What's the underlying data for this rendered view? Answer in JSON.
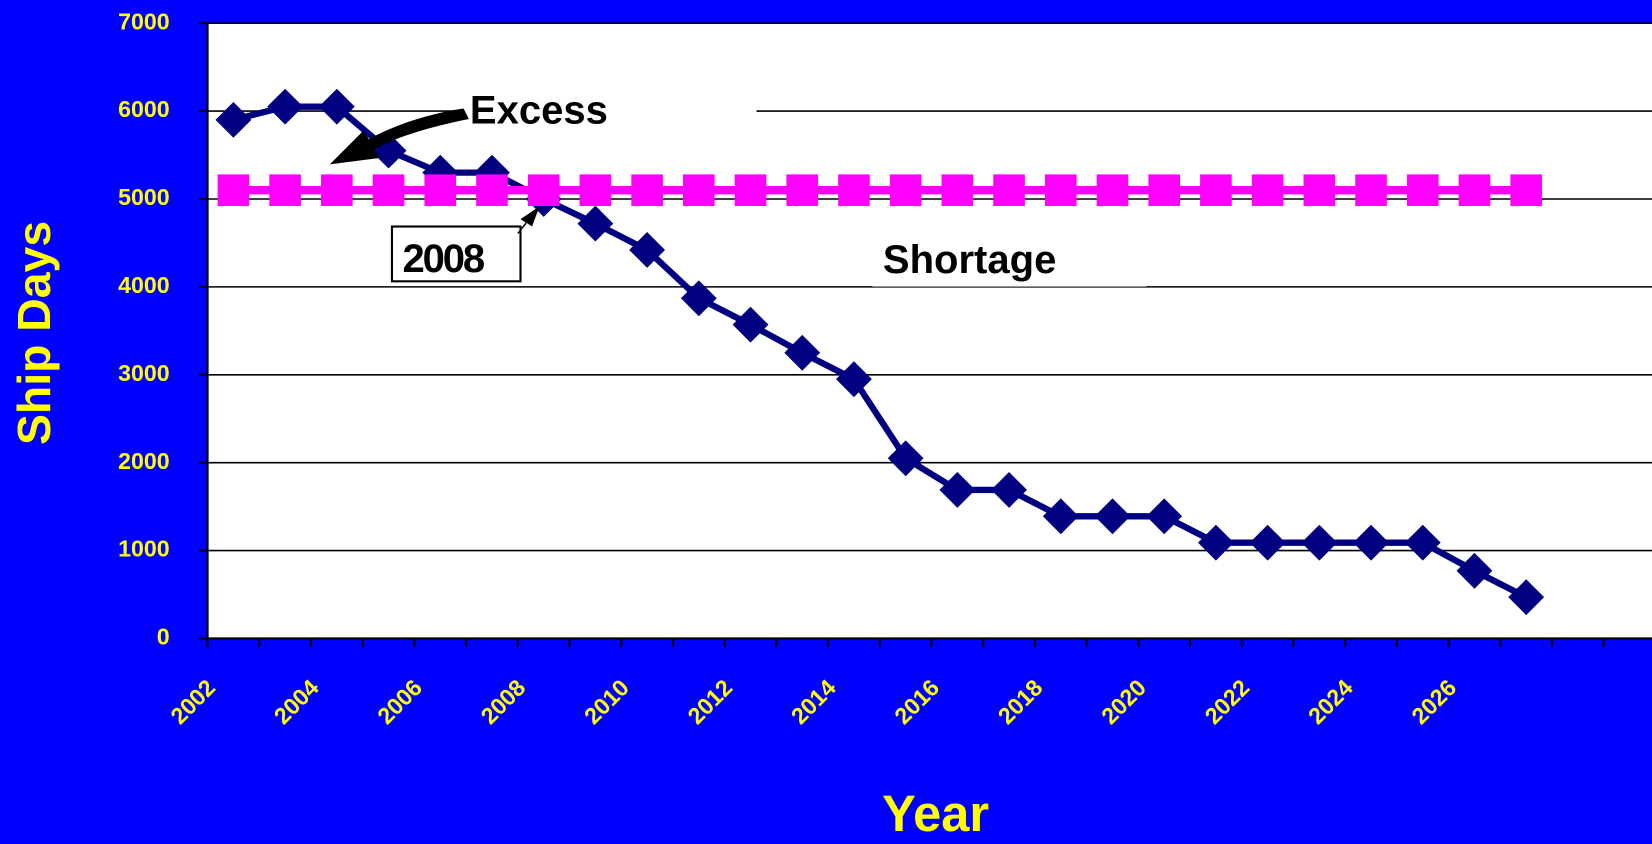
{
  "chart_data": {
    "type": "line",
    "y_label": "Ship Days",
    "x_label": "Year",
    "annotations": [
      "Excess",
      "2008",
      "Shortage"
    ],
    "categories": [
      "2002",
      null,
      "2004",
      null,
      "2006",
      null,
      "2008",
      null,
      "2010",
      null,
      "2012",
      null,
      "2014",
      null,
      "2016",
      null,
      "2018",
      null,
      "2020",
      null,
      "2022",
      null,
      "2024",
      null,
      "2026",
      null,
      null,
      null
    ],
    "series": [
      {
        "color": "#000080",
        "values": [
          5900,
          6050,
          6050,
          5550,
          5300,
          5300,
          5000,
          4720,
          4420,
          3870,
          3570,
          3250,
          2950,
          2050,
          1690,
          1690,
          1390,
          1390,
          1390,
          1090,
          1090,
          1090,
          1090,
          1090,
          770,
          470,
          null,
          null
        ]
      },
      {
        "color": "#ff00ff",
        "values": [
          5100,
          5100,
          5100,
          5100,
          5100,
          5100,
          5100,
          5100,
          5100,
          5100,
          5100,
          5100,
          5100,
          5100,
          5100,
          5100,
          5100,
          5100,
          5100,
          5100,
          5100,
          5100,
          5100,
          5100,
          5100,
          5100,
          null,
          null
        ]
      }
    ],
    "ylim": [
      0,
      7000
    ],
    "yticks": [
      0,
      1000,
      2000,
      3000,
      4000,
      5000,
      6000,
      7000
    ],
    "grid": true
  }
}
